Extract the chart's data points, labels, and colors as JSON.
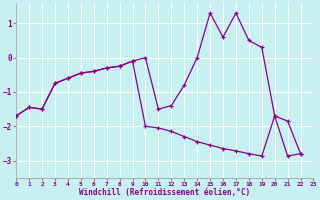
{
  "xlabel": "Windchill (Refroidissement éolien,°C)",
  "bg_color": "#c8f0f0",
  "line_color": "#880088",
  "xlim": [
    0,
    23
  ],
  "ylim": [
    -3.5,
    1.6
  ],
  "yticks": [
    -3,
    -2,
    -1,
    0,
    1
  ],
  "xticks": [
    0,
    1,
    2,
    3,
    4,
    5,
    6,
    7,
    8,
    9,
    10,
    11,
    12,
    13,
    14,
    15,
    16,
    17,
    18,
    19,
    20,
    21,
    22,
    23
  ],
  "curve1_x": [
    0,
    1,
    2,
    3,
    4,
    5,
    6,
    7,
    8,
    9,
    10,
    11,
    12,
    13,
    14,
    15,
    16,
    17,
    18,
    19,
    20,
    21,
    22
  ],
  "curve1_y": [
    -1.7,
    -1.45,
    -1.5,
    -0.75,
    -0.6,
    -0.45,
    -0.4,
    -0.3,
    -0.25,
    -0.1,
    0.0,
    -1.5,
    -1.4,
    -0.8,
    0.0,
    1.3,
    0.6,
    1.3,
    0.5,
    0.3,
    -1.7,
    -1.85,
    -2.8
  ],
  "curve2_x": [
    0,
    1,
    2,
    3,
    4,
    5,
    6,
    7,
    8,
    9,
    10,
    11,
    12,
    13,
    14,
    15,
    16,
    17,
    18,
    19,
    20,
    21,
    22
  ],
  "curve2_y": [
    -1.7,
    -1.45,
    -1.5,
    -0.75,
    -0.6,
    -0.45,
    -0.4,
    -0.3,
    -0.25,
    -0.1,
    -2.0,
    -2.05,
    -2.15,
    -2.3,
    -2.45,
    -2.55,
    -2.65,
    -2.72,
    -2.8,
    -2.87,
    -1.7,
    -2.87,
    -2.8
  ]
}
